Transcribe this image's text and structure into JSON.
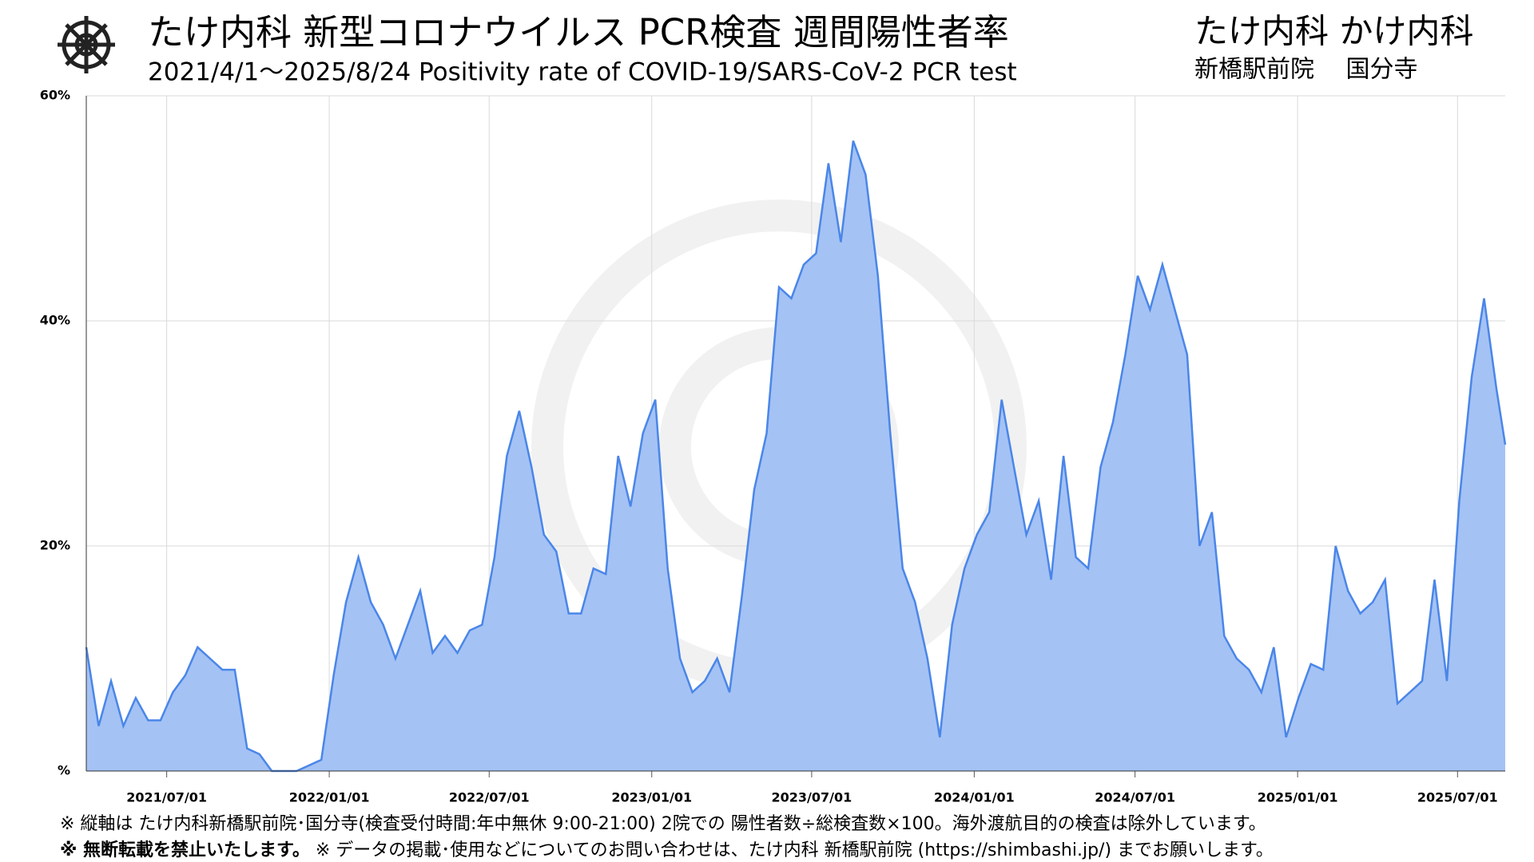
{
  "header": {
    "title": "たけ内科 新型コロナウイルス PCR検査 週間陽性者率",
    "subtitle": "2021/4/1〜2025/8/24  Positivity rate of COVID-19/SARS-CoV-2 PCR test",
    "clinics": "たけ内科 かけ内科",
    "branches": "新橋駅前院　 国分寺"
  },
  "chart_data": {
    "type": "area",
    "color": "#4a86e8",
    "fill": "#a4c2f4",
    "grid": true,
    "x": [
      "2021-04-01",
      "2021-04-15",
      "2021-04-29",
      "2021-05-13",
      "2021-05-27",
      "2021-06-10",
      "2021-06-24",
      "2021-07-08",
      "2021-07-22",
      "2021-08-05",
      "2021-08-19",
      "2021-09-02",
      "2021-09-16",
      "2021-09-30",
      "2021-10-14",
      "2021-10-28",
      "2021-11-11",
      "2021-11-25",
      "2021-12-09",
      "2021-12-23",
      "2022-01-06",
      "2022-01-20",
      "2022-02-03",
      "2022-02-17",
      "2022-03-03",
      "2022-03-17",
      "2022-03-31",
      "2022-04-14",
      "2022-04-28",
      "2022-05-12",
      "2022-05-26",
      "2022-06-09",
      "2022-06-23",
      "2022-07-07",
      "2022-07-21",
      "2022-08-04",
      "2022-08-18",
      "2022-09-01",
      "2022-09-15",
      "2022-09-29",
      "2022-10-13",
      "2022-10-27",
      "2022-11-10",
      "2022-11-24",
      "2022-12-08",
      "2022-12-22",
      "2023-01-05",
      "2023-01-19",
      "2023-02-02",
      "2023-02-16",
      "2023-03-02",
      "2023-03-16",
      "2023-03-30",
      "2023-04-13",
      "2023-04-27",
      "2023-05-11",
      "2023-05-25",
      "2023-06-08",
      "2023-06-22",
      "2023-07-06",
      "2023-07-20",
      "2023-08-03",
      "2023-08-17",
      "2023-08-31",
      "2023-09-14",
      "2023-09-28",
      "2023-10-12",
      "2023-10-26",
      "2023-11-09",
      "2023-11-23",
      "2023-12-07",
      "2023-12-21",
      "2024-01-04",
      "2024-01-18",
      "2024-02-01",
      "2024-02-15",
      "2024-02-29",
      "2024-03-14",
      "2024-03-28",
      "2024-04-11",
      "2024-04-25",
      "2024-05-09",
      "2024-05-23",
      "2024-06-06",
      "2024-06-20",
      "2024-07-04",
      "2024-07-18",
      "2024-08-01",
      "2024-08-15",
      "2024-08-29",
      "2024-09-12",
      "2024-09-26",
      "2024-10-10",
      "2024-10-24",
      "2024-11-07",
      "2024-11-21",
      "2024-12-05",
      "2024-12-19",
      "2025-01-02",
      "2025-01-16",
      "2025-01-30",
      "2025-02-13",
      "2025-02-27",
      "2025-03-13",
      "2025-03-27",
      "2025-04-10",
      "2025-04-24",
      "2025-05-08",
      "2025-05-22",
      "2025-06-05",
      "2025-06-19",
      "2025-07-03",
      "2025-07-17",
      "2025-07-31",
      "2025-08-14",
      "2025-08-24"
    ],
    "values": [
      11,
      4,
      8,
      4,
      6.5,
      4.5,
      4.5,
      7,
      8.5,
      11,
      10,
      9,
      9,
      2,
      1.5,
      0,
      0,
      0,
      0.5,
      1,
      8.5,
      15,
      19,
      15,
      13,
      10,
      13,
      16,
      10.5,
      12,
      10.5,
      12.5,
      13,
      19,
      28,
      32,
      27,
      21,
      19.5,
      14,
      14,
      18,
      17.5,
      28,
      23.5,
      30,
      33,
      18,
      10,
      7,
      8,
      10,
      7,
      15.5,
      25,
      30,
      43,
      42,
      45,
      46,
      54,
      47,
      56,
      53,
      44,
      30,
      18,
      15,
      10,
      3,
      13,
      18,
      21,
      23,
      33,
      27,
      21,
      24,
      17,
      28,
      19,
      18,
      27,
      31,
      37,
      44,
      41,
      45,
      41,
      37,
      20,
      23,
      12,
      10,
      9,
      7,
      11,
      3,
      6.5,
      9.5,
      9,
      20,
      16,
      14,
      15,
      17,
      6,
      7,
      8,
      17,
      8,
      24,
      35,
      42,
      34,
      29
    ],
    "xlim": [
      "2021-04-01",
      "2025-08-24"
    ],
    "xticks": [
      {
        "value": "2021-07-01",
        "label": "2021/07/01"
      },
      {
        "value": "2022-01-01",
        "label": "2022/01/01"
      },
      {
        "value": "2022-07-01",
        "label": "2022/07/01"
      },
      {
        "value": "2023-01-01",
        "label": "2023/01/01"
      },
      {
        "value": "2023-07-01",
        "label": "2023/07/01"
      },
      {
        "value": "2024-01-01",
        "label": "2024/01/01"
      },
      {
        "value": "2024-07-01",
        "label": "2024/07/01"
      },
      {
        "value": "2025-01-01",
        "label": "2025/01/01"
      },
      {
        "value": "2025-07-01",
        "label": "2025/07/01"
      }
    ],
    "ylim": [
      0,
      60
    ],
    "yticks": [
      {
        "value": 0,
        "label": "%"
      },
      {
        "value": 20,
        "label": "20%"
      },
      {
        "value": 40,
        "label": "40%"
      },
      {
        "value": 60,
        "label": "60%"
      }
    ]
  },
  "footnotes": {
    "line1": "※ 縦軸は たけ内科新橋駅前院･国分寺(検査受付時間:年中無休 9:00-21:00) 2院での 陽性者数÷総検査数×100。海外渡航目的の検査は除外しています。",
    "line2_bold": "※ 無断転載を禁止いたします。",
    "line2": " ※ データの掲載･使用などについてのお問い合わせは、たけ内科 新橋駅前院 (https://shimbashi.jp/) までお願いします。"
  }
}
